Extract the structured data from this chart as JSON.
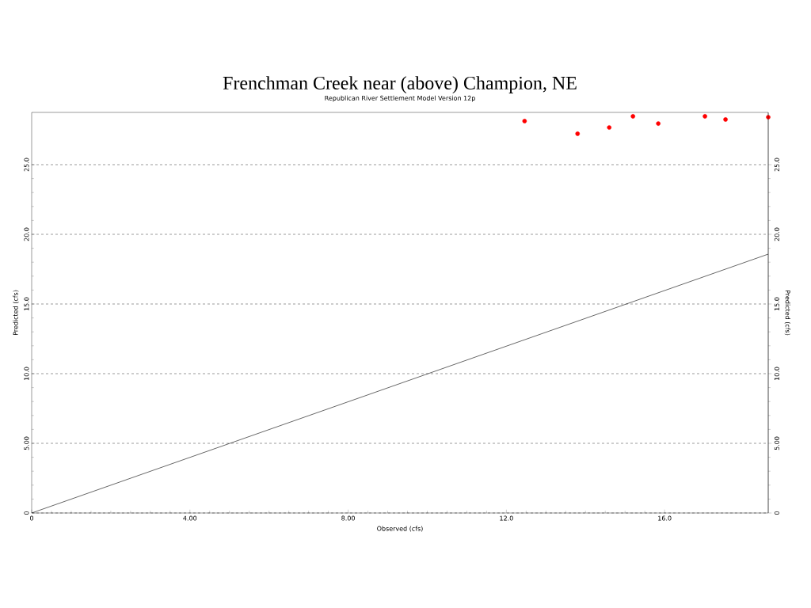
{
  "chart_data": {
    "type": "scatter",
    "title": "Frenchman Creek near (above) Champion, NE",
    "subtitle": "Republican River Settlement Model Version 12p",
    "xlabel": "Observed (cfs)",
    "ylabel": "Predicted (cfs)",
    "y2label": "Predicted (cfs)",
    "xlim": [
      0,
      18.62
    ],
    "ylim": [
      0,
      28.75
    ],
    "y2lim": [
      0,
      28.75
    ],
    "xticks": [
      0,
      {
        "value": 4,
        "label": "4.00"
      },
      {
        "value": 8,
        "label": "8.00"
      },
      {
        "value": 12,
        "label": "12.0"
      },
      {
        "value": 16,
        "label": "16.0"
      }
    ],
    "yticks": [
      0,
      {
        "value": 5,
        "label": "5.00"
      },
      {
        "value": 10,
        "label": "10.0"
      },
      {
        "value": 15,
        "label": "15.0"
      },
      {
        "value": 20,
        "label": "20.0"
      },
      {
        "value": 25,
        "label": "25.0"
      }
    ],
    "y2ticks": [
      0,
      {
        "value": 5,
        "label": "5.00"
      },
      {
        "value": 10,
        "label": "10.0"
      },
      {
        "value": 15,
        "label": "15.0"
      },
      {
        "value": 20,
        "label": "20.0"
      },
      {
        "value": 25,
        "label": "25.0"
      }
    ],
    "grid": "y",
    "series": [
      {
        "marker": "circle",
        "color": "#ff0000",
        "x": [
          12.46,
          13.8,
          14.6,
          15.2,
          15.84,
          17.02,
          17.54,
          18.62
        ],
        "values": [
          28.13,
          27.22,
          27.67,
          28.47,
          27.95,
          28.47,
          28.24,
          28.41
        ]
      },
      {
        "type": "line",
        "marker": "none",
        "color": "#000000",
        "x": [
          0,
          18.62
        ],
        "values": [
          0,
          18.58
        ]
      }
    ]
  }
}
